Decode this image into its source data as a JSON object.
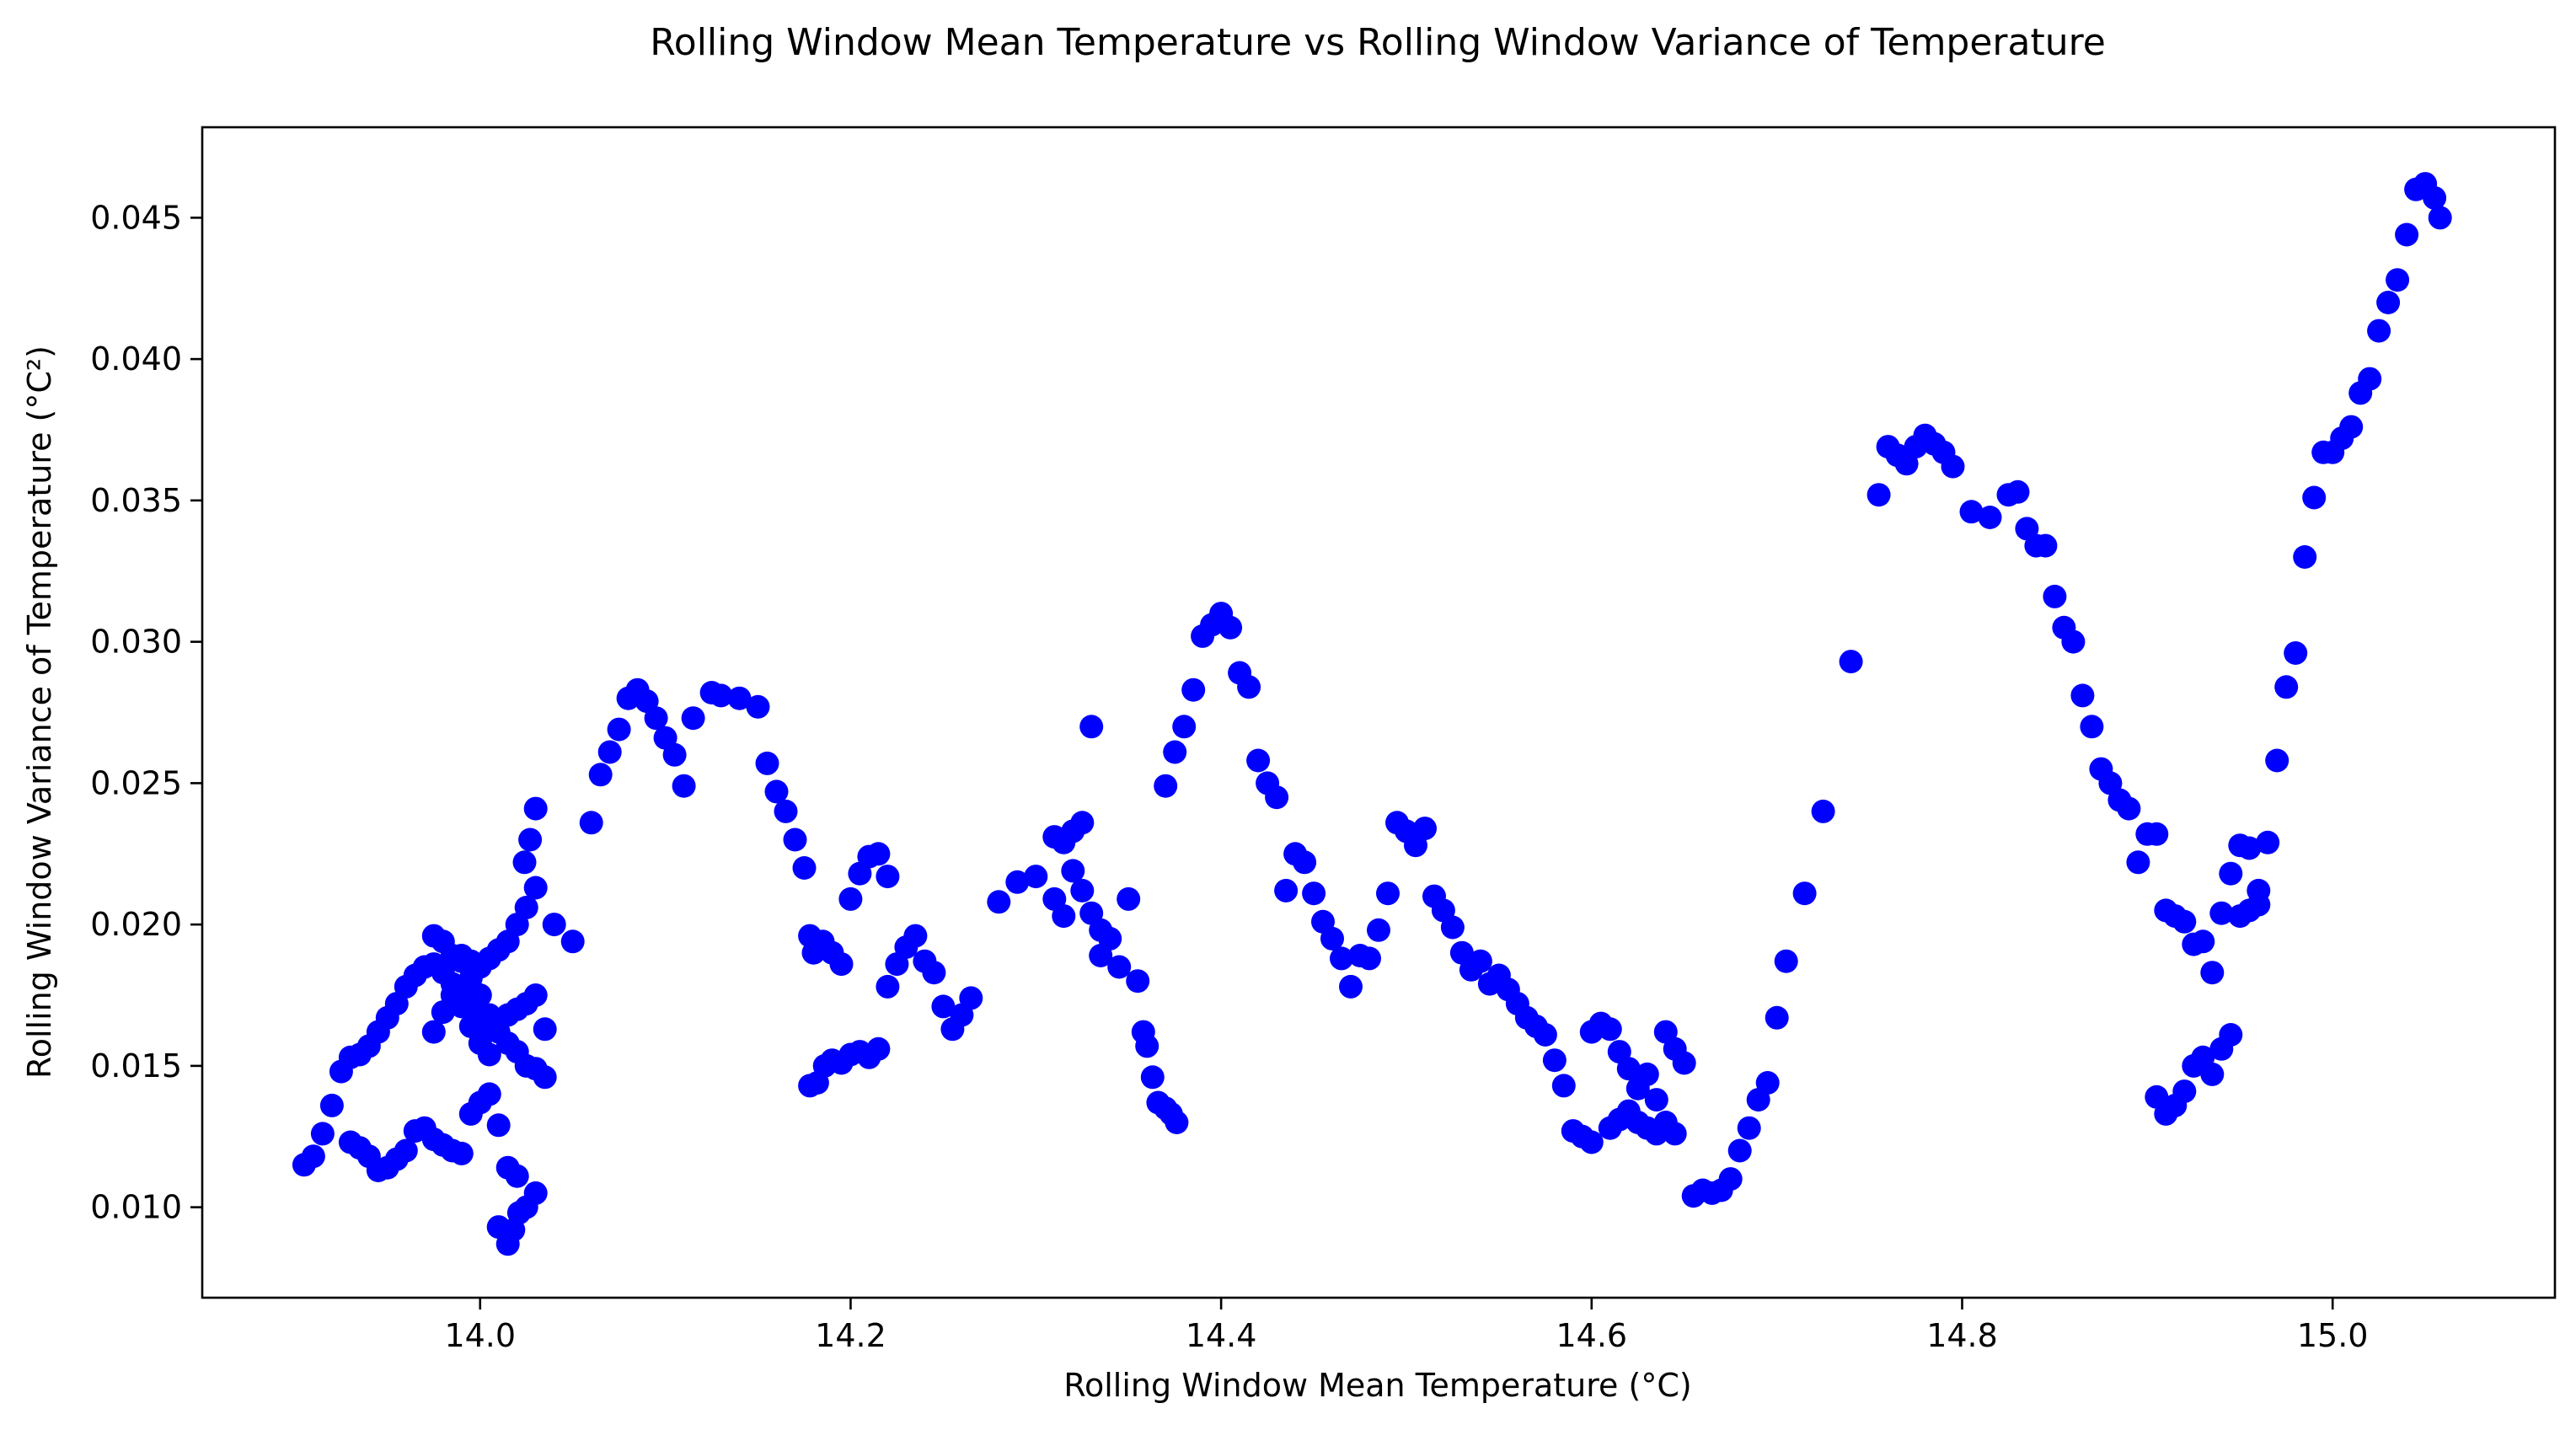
{
  "chart_data": {
    "type": "scatter",
    "title": "Rolling Window Mean Temperature vs Rolling Window Variance of Temperature",
    "xlabel": "Rolling Window Mean Temperature (°C)",
    "ylabel": "Rolling Window Variance of Temperature (°C²)",
    "xlim": [
      13.85,
      15.12
    ],
    "ylim": [
      0.0068,
      0.0482
    ],
    "xticks": [
      14.0,
      14.2,
      14.4,
      14.6,
      14.8,
      15.0
    ],
    "xtick_labels": [
      "14.0",
      "14.2",
      "14.4",
      "14.6",
      "14.8",
      "15.0"
    ],
    "yticks": [
      0.01,
      0.015,
      0.02,
      0.025,
      0.03,
      0.035,
      0.04,
      0.045
    ],
    "ytick_labels": [
      "0.010",
      "0.015",
      "0.020",
      "0.025",
      "0.030",
      "0.035",
      "0.040",
      "0.045"
    ],
    "grid": false,
    "legend": "none",
    "marker_color": "#0000ff",
    "series": [
      {
        "x": [
          13.905,
          13.91,
          13.915,
          13.92,
          13.925,
          13.93,
          13.935,
          13.94,
          13.945,
          13.95,
          13.955,
          13.96,
          13.965,
          13.97,
          13.975,
          13.98,
          13.985,
          13.99,
          13.995,
          14.0,
          14.005,
          14.01,
          14.015,
          14.02,
          14.025,
          14.03,
          14.035,
          13.93,
          13.935,
          13.94,
          13.945,
          13.95,
          13.955,
          13.96,
          13.965,
          13.97,
          13.975,
          13.98,
          13.985,
          13.99,
          13.995,
          14.0,
          14.005,
          14.01,
          14.015,
          14.02,
          14.025,
          14.03,
          13.975,
          13.98,
          13.985,
          13.99,
          13.995,
          14.0,
          14.005,
          14.01,
          14.015,
          14.02,
          14.025,
          14.03,
          14.035,
          13.99,
          13.995,
          14.0,
          14.005,
          14.01,
          14.015,
          14.02,
          14.025,
          14.03,
          13.975,
          13.98,
          13.985,
          13.99,
          13.995,
          14.0,
          14.005,
          14.01,
          14.015,
          14.018,
          14.021,
          14.024,
          14.027,
          14.03,
          14.04,
          14.05,
          14.06,
          14.065,
          14.07,
          14.075,
          14.08,
          14.085,
          14.09,
          14.095,
          14.1,
          14.105,
          14.11,
          14.115,
          14.125,
          14.13,
          14.14,
          14.15,
          14.155,
          14.16,
          14.165,
          14.17,
          14.175,
          14.178,
          14.178,
          14.182,
          14.186,
          14.19,
          14.195,
          14.2,
          14.205,
          14.21,
          14.215,
          14.22,
          14.225,
          14.23,
          14.235,
          14.24,
          14.245,
          14.25,
          14.255,
          14.26,
          14.265,
          14.18,
          14.185,
          14.19,
          14.195,
          14.2,
          14.205,
          14.21,
          14.215,
          14.22,
          14.28,
          14.29,
          14.3,
          14.31,
          14.315,
          14.32,
          14.325,
          14.33,
          14.335,
          14.34,
          14.345,
          14.35,
          14.355,
          14.358,
          14.36,
          14.363,
          14.366,
          14.37,
          14.373,
          14.376,
          14.31,
          14.315,
          14.32,
          14.325,
          14.33,
          14.335,
          14.37,
          14.375,
          14.38,
          14.385,
          14.39,
          14.395,
          14.4,
          14.405,
          14.41,
          14.415,
          14.42,
          14.425,
          14.43,
          14.435,
          14.44,
          14.445,
          14.45,
          14.455,
          14.46,
          14.465,
          14.47,
          14.475,
          14.48,
          14.485,
          14.49,
          14.495,
          14.5,
          14.505,
          14.51,
          14.515,
          14.52,
          14.525,
          14.53,
          14.535,
          14.54,
          14.545,
          14.55,
          14.555,
          14.56,
          14.565,
          14.57,
          14.575,
          14.58,
          14.585,
          14.59,
          14.595,
          14.6,
          14.6,
          14.605,
          14.61,
          14.615,
          14.62,
          14.625,
          14.63,
          14.635,
          14.64,
          14.645,
          14.65,
          14.655,
          14.66,
          14.665,
          14.67,
          14.675,
          14.68,
          14.685,
          14.69,
          14.695,
          14.61,
          14.615,
          14.62,
          14.625,
          14.63,
          14.635,
          14.64,
          14.645,
          14.7,
          14.705,
          14.715,
          14.725,
          14.74,
          14.755,
          14.76,
          14.765,
          14.77,
          14.775,
          14.78,
          14.785,
          14.79,
          14.795,
          14.805,
          14.815,
          14.825,
          14.83,
          14.835,
          14.84,
          14.845,
          14.85,
          14.855,
          14.86,
          14.865,
          14.87,
          14.875,
          14.88,
          14.885,
          14.89,
          14.895,
          14.9,
          14.905,
          14.91,
          14.915,
          14.92,
          14.925,
          14.93,
          14.935,
          14.94,
          14.945,
          14.95,
          14.955,
          14.96,
          14.965,
          14.97,
          14.975,
          14.98,
          14.985,
          14.99,
          14.995,
          15.0,
          15.005,
          15.01,
          15.015,
          15.02,
          15.025,
          15.03,
          15.035,
          15.04,
          15.045,
          15.05,
          15.055,
          15.058,
          14.905,
          14.91,
          14.915,
          14.92,
          14.925,
          14.93,
          14.935,
          14.94,
          14.945,
          14.95,
          14.955,
          14.96
        ],
        "y": [
          0.0115,
          0.0118,
          0.0126,
          0.0136,
          0.0148,
          0.0153,
          0.0154,
          0.0157,
          0.0162,
          0.0167,
          0.0172,
          0.0178,
          0.0182,
          0.0185,
          0.0186,
          0.0183,
          0.0179,
          0.0176,
          0.0171,
          0.0168,
          0.0165,
          0.0166,
          0.0168,
          0.017,
          0.0172,
          0.0175,
          0.0163,
          0.0123,
          0.0121,
          0.0118,
          0.0113,
          0.0114,
          0.0117,
          0.012,
          0.0127,
          0.0128,
          0.0124,
          0.0122,
          0.012,
          0.0119,
          0.0133,
          0.0137,
          0.014,
          0.0129,
          0.0114,
          0.0111,
          0.01,
          0.0105,
          0.0196,
          0.0194,
          0.0189,
          0.0187,
          0.0181,
          0.0175,
          0.0168,
          0.0162,
          0.0158,
          0.0155,
          0.015,
          0.0149,
          0.0146,
          0.0189,
          0.0187,
          0.0185,
          0.0188,
          0.0191,
          0.0194,
          0.02,
          0.0206,
          0.0213,
          0.0162,
          0.0169,
          0.0175,
          0.0171,
          0.0164,
          0.0158,
          0.0154,
          0.0093,
          0.0087,
          0.0092,
          0.0098,
          0.0222,
          0.023,
          0.0241,
          0.02,
          0.0194,
          0.0236,
          0.0253,
          0.0261,
          0.0269,
          0.028,
          0.0283,
          0.0279,
          0.0273,
          0.0266,
          0.026,
          0.0249,
          0.0273,
          0.0282,
          0.0281,
          0.028,
          0.0277,
          0.0257,
          0.0247,
          0.024,
          0.023,
          0.022,
          0.0196,
          0.0143,
          0.0144,
          0.015,
          0.0152,
          0.0151,
          0.0154,
          0.0155,
          0.0153,
          0.0156,
          0.0178,
          0.0186,
          0.0192,
          0.0196,
          0.0187,
          0.0183,
          0.0171,
          0.0163,
          0.0168,
          0.0174,
          0.019,
          0.0194,
          0.019,
          0.0186,
          0.0209,
          0.0218,
          0.0224,
          0.0225,
          0.0217,
          0.0208,
          0.0215,
          0.0217,
          0.0209,
          0.0203,
          0.0219,
          0.0212,
          0.0204,
          0.0189,
          0.0195,
          0.0185,
          0.0209,
          0.018,
          0.0162,
          0.0157,
          0.0146,
          0.0137,
          0.0135,
          0.0133,
          0.013,
          0.0231,
          0.0229,
          0.0233,
          0.0236,
          0.027,
          0.0198,
          0.0249,
          0.0261,
          0.027,
          0.0283,
          0.0302,
          0.0306,
          0.031,
          0.0305,
          0.0289,
          0.0284,
          0.0258,
          0.025,
          0.0245,
          0.0212,
          0.0225,
          0.0222,
          0.0211,
          0.0201,
          0.0195,
          0.0188,
          0.0178,
          0.0189,
          0.0188,
          0.0198,
          0.0211,
          0.0236,
          0.0233,
          0.0228,
          0.0234,
          0.021,
          0.0205,
          0.0199,
          0.019,
          0.0184,
          0.0187,
          0.0179,
          0.0182,
          0.0177,
          0.0172,
          0.0167,
          0.0164,
          0.0161,
          0.0152,
          0.0143,
          0.0127,
          0.0125,
          0.0123,
          0.0162,
          0.0165,
          0.0163,
          0.0155,
          0.0149,
          0.0142,
          0.0147,
          0.0138,
          0.0162,
          0.0156,
          0.0151,
          0.0104,
          0.0106,
          0.0105,
          0.0106,
          0.011,
          0.012,
          0.0128,
          0.0138,
          0.0144,
          0.0128,
          0.0131,
          0.0134,
          0.013,
          0.0128,
          0.0126,
          0.013,
          0.0126,
          0.0167,
          0.0187,
          0.0211,
          0.024,
          0.0293,
          0.0352,
          0.0369,
          0.0366,
          0.0363,
          0.0369,
          0.0373,
          0.037,
          0.0367,
          0.0362,
          0.0346,
          0.0344,
          0.0352,
          0.0353,
          0.034,
          0.0334,
          0.0334,
          0.0316,
          0.0305,
          0.03,
          0.0281,
          0.027,
          0.0255,
          0.025,
          0.0244,
          0.0241,
          0.0222,
          0.0232,
          0.0232,
          0.0205,
          0.0203,
          0.0201,
          0.0193,
          0.0194,
          0.0183,
          0.0204,
          0.0218,
          0.0228,
          0.0227,
          0.0212,
          0.0229,
          0.0258,
          0.0284,
          0.0296,
          0.033,
          0.0351,
          0.0367,
          0.0367,
          0.0372,
          0.0376,
          0.0388,
          0.0393,
          0.041,
          0.042,
          0.0428,
          0.0444,
          0.046,
          0.0462,
          0.0457,
          0.045,
          0.0139,
          0.0133,
          0.0136,
          0.0141,
          0.015,
          0.0153,
          0.0147,
          0.0156,
          0.0161,
          0.0203,
          0.0205,
          0.0207
        ]
      }
    ]
  }
}
